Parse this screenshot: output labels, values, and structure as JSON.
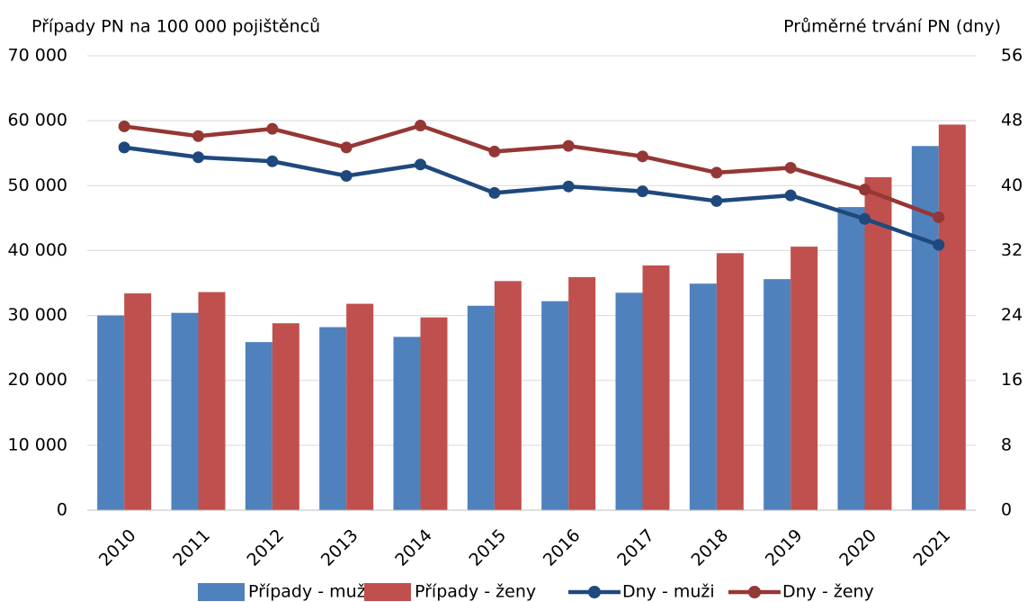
{
  "chart_data": {
    "type": "bar_line",
    "y_label": "Případy PN na 100 000 pojištěnců",
    "y2_label": "Průměrné trvání PN (dny)",
    "categories": [
      "2010",
      "2011",
      "2012",
      "2013",
      "2014",
      "2015",
      "2016",
      "2017",
      "2018",
      "2019",
      "2020",
      "2021"
    ],
    "series": [
      {
        "name": "Případy - muži",
        "type": "bar",
        "color": "#4f81bd",
        "values": [
          30000,
          30400,
          25900,
          28200,
          26700,
          31500,
          32200,
          33500,
          34900,
          35600,
          46700,
          56100
        ]
      },
      {
        "name": "Případy - ženy",
        "type": "bar",
        "color": "#c0504d",
        "values": [
          33400,
          33600,
          28800,
          31800,
          29700,
          35300,
          35900,
          37700,
          39600,
          40600,
          51300,
          59400
        ]
      },
      {
        "name": "Dny - muži",
        "type": "line",
        "axis": "y2",
        "color": "#1f497d",
        "values": [
          44.7,
          43.5,
          43.0,
          41.2,
          42.6,
          39.1,
          39.9,
          39.3,
          38.1,
          38.8,
          35.9,
          32.7
        ]
      },
      {
        "name": "Dny - ženy",
        "type": "line",
        "axis": "y2",
        "color": "#953735",
        "values": [
          47.3,
          46.1,
          47.0,
          44.7,
          47.4,
          44.2,
          44.9,
          43.6,
          41.6,
          42.2,
          39.5,
          36.1
        ]
      }
    ],
    "ylim": [
      0,
      70000
    ],
    "yticks": [
      0,
      {
        "value": 10000,
        "label": "10 000"
      },
      {
        "value": 20000,
        "label": "20 000"
      },
      {
        "value": 30000,
        "label": "30 000"
      },
      {
        "value": 40000,
        "label": "40 000"
      },
      {
        "value": 50000,
        "label": "50 000"
      },
      {
        "value": 60000,
        "label": "60 000"
      },
      {
        "value": 70000,
        "label": "70 000"
      }
    ],
    "y2lim": [
      0,
      56
    ],
    "y2ticks": [
      0,
      8,
      16,
      24,
      32,
      40,
      48,
      56
    ],
    "grid": true,
    "legend": "bottom"
  }
}
